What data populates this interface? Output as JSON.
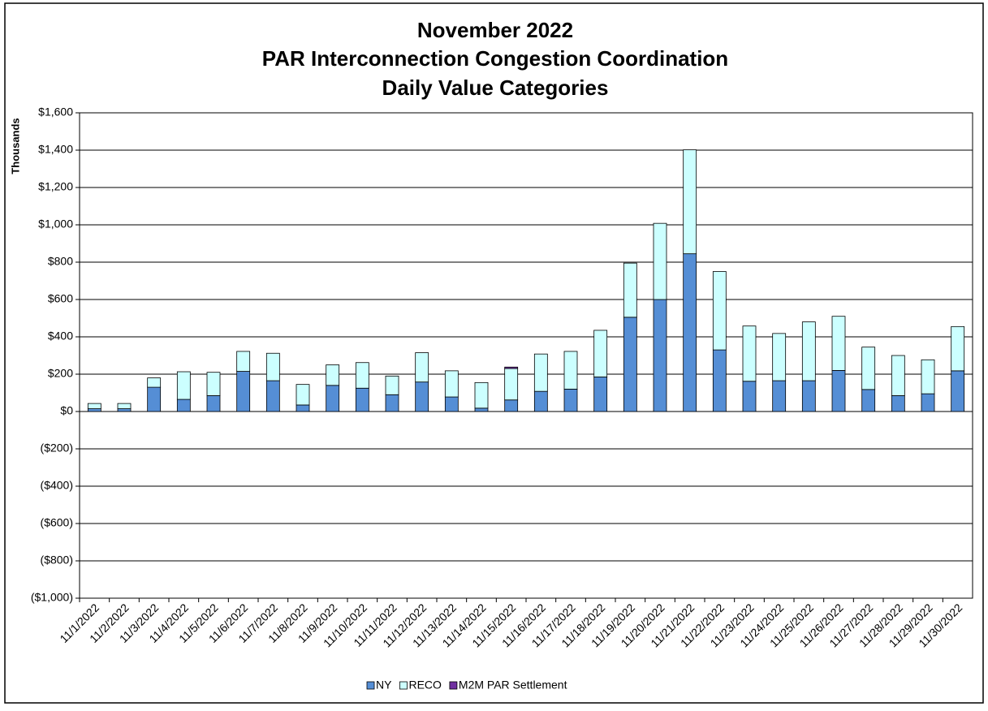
{
  "chart_data": {
    "type": "stacked-bar",
    "title": [
      "November 2022",
      "PAR Interconnection Congestion Coordination",
      "Daily Value Categories"
    ],
    "y_label": "Thousands",
    "categories": [
      "11/1/2022",
      "11/2/2022",
      "11/3/2022",
      "11/4/2022",
      "11/5/2022",
      "11/6/2022",
      "11/7/2022",
      "11/8/2022",
      "11/9/2022",
      "11/10/2022",
      "11/11/2022",
      "11/12/2022",
      "11/13/2022",
      "11/14/2022",
      "11/15/2022",
      "11/16/2022",
      "11/17/2022",
      "11/18/2022",
      "11/19/2022",
      "11/20/2022",
      "11/21/2022",
      "11/22/2022",
      "11/23/2022",
      "11/24/2022",
      "11/25/2022",
      "11/26/2022",
      "11/27/2022",
      "11/28/2022",
      "11/29/2022",
      "11/30/2022"
    ],
    "series": [
      {
        "name": "NY",
        "color": "#558ed5",
        "values": [
          15,
          15,
          130,
          65,
          85,
          215,
          165,
          35,
          140,
          125,
          90,
          158,
          78,
          18,
          62,
          108,
          120,
          185,
          505,
          600,
          845,
          330,
          162,
          165,
          165,
          220,
          118,
          85,
          95,
          218
        ]
      },
      {
        "name": "RECO",
        "color": "#ccffff",
        "values": [
          28,
          28,
          50,
          148,
          125,
          107,
          147,
          110,
          110,
          137,
          100,
          157,
          140,
          137,
          168,
          200,
          202,
          250,
          290,
          408,
          557,
          420,
          296,
          253,
          315,
          290,
          227,
          215,
          182,
          237
        ]
      },
      {
        "name": "M2M PAR Settlement",
        "color": "#7030a0",
        "values": [
          0,
          0,
          0,
          0,
          0,
          0,
          0,
          0,
          0,
          0,
          0,
          0,
          0,
          0,
          8,
          0,
          0,
          0,
          0,
          0,
          0,
          0,
          0,
          0,
          0,
          0,
          0,
          0,
          0,
          0
        ]
      }
    ],
    "ylim": [
      -1000,
      1600
    ],
    "yticks": [
      {
        "value": -1000,
        "label": "($1,000)"
      },
      {
        "value": -800,
        "label": "($800)"
      },
      {
        "value": -600,
        "label": "($600)"
      },
      {
        "value": -400,
        "label": "($400)"
      },
      {
        "value": -200,
        "label": "($200)"
      },
      {
        "value": 0,
        "label": "$0"
      },
      {
        "value": 200,
        "label": "$200"
      },
      {
        "value": 400,
        "label": "$400"
      },
      {
        "value": 600,
        "label": "$600"
      },
      {
        "value": 800,
        "label": "$800"
      },
      {
        "value": 1000,
        "label": "$1,000"
      },
      {
        "value": 1200,
        "label": "$1,200"
      },
      {
        "value": 1400,
        "label": "$1,400"
      },
      {
        "value": 1600,
        "label": "$1,600"
      }
    ],
    "negative_tick_color": "#ff0000",
    "grid": true,
    "legend": "bottom"
  }
}
